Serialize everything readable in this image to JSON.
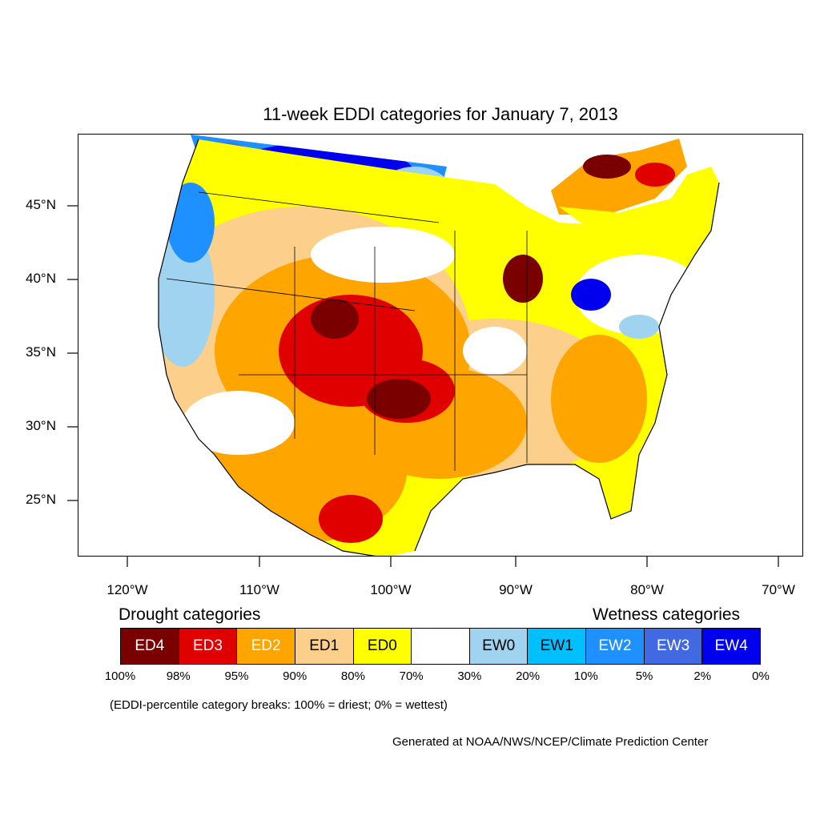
{
  "title": "11-week EDDI categories for January 7, 2013",
  "y_axis": {
    "ticks": [
      "45°N",
      "40°N",
      "35°N",
      "30°N",
      "25°N"
    ]
  },
  "x_axis": {
    "ticks": [
      "120°W",
      "110°W",
      "100°W",
      "90°W",
      "80°W",
      "70°W"
    ]
  },
  "legend": {
    "drought_heading": "Drought categories",
    "wetness_heading": "Wetness categories",
    "categories": [
      {
        "label": "ED4",
        "color": "#7a0000",
        "text_color": "#ffffff"
      },
      {
        "label": "ED3",
        "color": "#e00000",
        "text_color": "#ffffff"
      },
      {
        "label": "ED2",
        "color": "#ffa500",
        "text_color": "#ffffff"
      },
      {
        "label": "ED1",
        "color": "#fcd08a",
        "text_color": "#000000"
      },
      {
        "label": "ED0",
        "color": "#ffff00",
        "text_color": "#000000"
      },
      {
        "label": "",
        "color": "#ffffff",
        "text_color": "#000000"
      },
      {
        "label": "EW0",
        "color": "#9fd3f0",
        "text_color": "#000000"
      },
      {
        "label": "EW1",
        "color": "#00bfff",
        "text_color": "#000000"
      },
      {
        "label": "EW2",
        "color": "#1e90ff",
        "text_color": "#ffffff"
      },
      {
        "label": "EW3",
        "color": "#4169e1",
        "text_color": "#ffffff"
      },
      {
        "label": "EW4",
        "color": "#0000ee",
        "text_color": "#ffffff"
      }
    ],
    "breaks": [
      "100%",
      "98%",
      "95%",
      "90%",
      "80%",
      "70%",
      "30%",
      "20%",
      "10%",
      "5%",
      "2%",
      "0%"
    ]
  },
  "breaks_note": "(EDDI-percentile category breaks: 100% = driest; 0% = wettest)",
  "credit": "Generated at NOAA/NWS/NCEP/Climate Prediction Center"
}
